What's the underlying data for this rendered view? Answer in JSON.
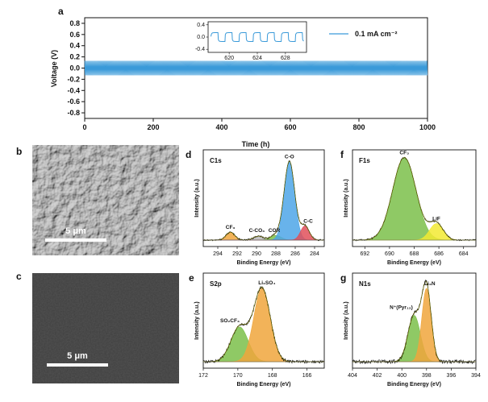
{
  "panel_letters": [
    "a",
    "b",
    "c",
    "d",
    "e",
    "f",
    "g"
  ],
  "colors": {
    "cycling": "#3a9ad9",
    "green": "#7bbf4a",
    "orange": "#f0a63c",
    "blue": "#4da6e8",
    "red": "#e0505a",
    "yellow": "#f2ea32",
    "gray_fill": "#bbbbbb",
    "envelope": "#666600",
    "raw": "#111111"
  },
  "sem": {
    "b_scale": "5 μm",
    "c_scale": "5 μm"
  },
  "chart_data": [
    {
      "panel": "a",
      "type": "line",
      "xlabel": "Time (h)",
      "ylabel": "Voltage (V)",
      "xlim": [
        0,
        1000
      ],
      "ylim": [
        -0.9,
        0.9
      ],
      "xticks": [
        "0",
        "200",
        "400",
        "600",
        "800",
        "1000"
      ],
      "yticks": [
        "-0.8",
        "-0.6",
        "-0.4",
        "-0.2",
        "0.0",
        "0.2",
        "0.4",
        "0.6",
        "0.8"
      ],
      "series": [
        {
          "name": "0.1 mA cm⁻²",
          "x_range": [
            0,
            1000
          ],
          "amplitude": 0.13
        }
      ],
      "legend": "top-right",
      "inset": {
        "xlim": [
          617,
          631
        ],
        "ylim": [
          -0.5,
          0.5
        ],
        "xticks": [
          "620",
          "624",
          "628"
        ],
        "yticks": [
          "0.4",
          "0.0",
          "-0.4"
        ],
        "period_h": 2,
        "amplitude": 0.13
      }
    },
    {
      "panel": "d",
      "type": "line",
      "title": "C1s",
      "xlabel": "Binding Energy (eV)",
      "ylabel": "Intensity (a.u.)",
      "xlim": [
        295.5,
        283
      ],
      "xticks": [
        "294",
        "292",
        "290",
        "288",
        "286",
        "284"
      ],
      "peaks": [
        {
          "label": "CF₃",
          "center": 292.7,
          "height": 0.1,
          "width": 0.45,
          "color": "orange"
        },
        {
          "label": "C-CO₃",
          "center": 289.8,
          "height": 0.05,
          "width": 0.5,
          "color": "gray_fill"
        },
        {
          "label": "COR",
          "center": 288.0,
          "height": 0.06,
          "width": 0.55,
          "color": "green"
        },
        {
          "label": "C-O",
          "center": 286.6,
          "height": 1.0,
          "width": 0.55,
          "color": "blue"
        },
        {
          "label": "C-C",
          "center": 285.0,
          "height": 0.18,
          "width": 0.45,
          "color": "red"
        }
      ]
    },
    {
      "panel": "e",
      "type": "line",
      "title": "S2p",
      "xlabel": "Binding Energy (eV)",
      "ylabel": "Intensity (a.u.)",
      "xlim": [
        172,
        165
      ],
      "xticks": [
        "172",
        "170",
        "168",
        "166"
      ],
      "peaks": [
        {
          "label": "SO₂CF₃",
          "center": 169.9,
          "height": 0.45,
          "width": 0.5,
          "color": "green"
        },
        {
          "label": "Li₂SO₄",
          "center": 168.6,
          "height": 0.95,
          "width": 0.48,
          "color": "orange"
        }
      ]
    },
    {
      "panel": "f",
      "type": "line",
      "title": "F1s",
      "xlabel": "Binding Energy (eV)",
      "ylabel": "Intensity (a.u.)",
      "xlim": [
        693,
        683
      ],
      "xticks": [
        "692",
        "690",
        "688",
        "686",
        "684"
      ],
      "peaks": [
        {
          "label": "CF₃",
          "center": 688.8,
          "height": 1.0,
          "width": 0.95,
          "color": "green"
        },
        {
          "label": "LiF",
          "center": 686.2,
          "height": 0.2,
          "width": 0.55,
          "color": "yellow"
        }
      ]
    },
    {
      "panel": "g",
      "type": "line",
      "title": "N1s",
      "xlabel": "Binding Energy (eV)",
      "ylabel": "Intensity (a.u.)",
      "xlim": [
        404,
        394
      ],
      "xticks": [
        "404",
        "402",
        "400",
        "398",
        "396",
        "394"
      ],
      "peaks": [
        {
          "label": "N⁺(Pyr₁₃)",
          "center": 399.0,
          "height": 0.6,
          "width": 0.5,
          "color": "green"
        },
        {
          "label": "Li₃N",
          "center": 398.0,
          "height": 0.95,
          "width": 0.38,
          "color": "orange"
        }
      ]
    }
  ]
}
